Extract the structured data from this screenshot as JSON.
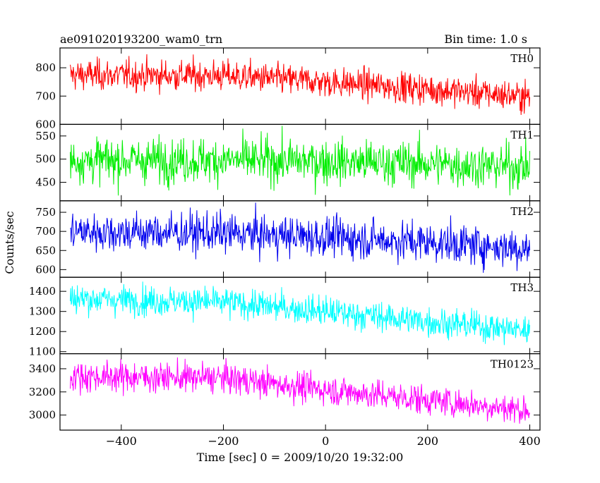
{
  "header": {
    "title": "ae091020193200_wam0_trn",
    "bin_time": "Bin time: 1.0 s"
  },
  "chart_data": {
    "type": "line",
    "xlabel": "Time [sec] 0 = 2009/10/20 19:32:00",
    "ylabel": "Counts/sec",
    "xlim": [
      -520,
      420
    ],
    "x_ticks": [
      -400,
      -200,
      0,
      200,
      400
    ],
    "x_tick_labels": [
      "−400",
      "−200",
      "0",
      "200",
      "400"
    ],
    "x_range": [
      -500,
      400
    ],
    "bin_time_s": 1.0,
    "grid": false,
    "panels": [
      {
        "name": "TH0",
        "color": "#ff0000",
        "ylim": [
          600,
          870
        ],
        "y_ticks": [
          600,
          700,
          800
        ],
        "y_tick_labels": [
          "600",
          "700",
          "800"
        ],
        "trend": [
          [
            -500,
            775
          ],
          [
            -200,
            772
          ],
          [
            0,
            750
          ],
          [
            200,
            725
          ],
          [
            400,
            697
          ]
        ],
        "noise_sd": 27
      },
      {
        "name": "TH1",
        "color": "#00ee00",
        "ylim": [
          410,
          575
        ],
        "y_ticks": [
          450,
          500,
          550
        ],
        "y_tick_labels": [
          "450",
          "500",
          "550"
        ],
        "trend": [
          [
            -500,
            497
          ],
          [
            -200,
            498
          ],
          [
            0,
            495
          ],
          [
            200,
            490
          ],
          [
            400,
            483
          ]
        ],
        "noise_sd": 24
      },
      {
        "name": "TH2",
        "color": "#0000ee",
        "ylim": [
          580,
          780
        ],
        "y_ticks": [
          600,
          650,
          700,
          750
        ],
        "y_tick_labels": [
          "600",
          "650",
          "700",
          "750"
        ],
        "trend": [
          [
            -500,
            700
          ],
          [
            -200,
            695
          ],
          [
            0,
            685
          ],
          [
            200,
            672
          ],
          [
            400,
            655
          ]
        ],
        "noise_sd": 26
      },
      {
        "name": "TH3",
        "color": "#00ffff",
        "ylim": [
          1090,
          1470
        ],
        "y_ticks": [
          1100,
          1200,
          1300,
          1400
        ],
        "y_tick_labels": [
          "1100",
          "1200",
          "1300",
          "1400"
        ],
        "trend": [
          [
            -500,
            1365
          ],
          [
            -200,
            1345
          ],
          [
            0,
            1300
          ],
          [
            200,
            1250
          ],
          [
            400,
            1205
          ]
        ],
        "noise_sd": 37
      },
      {
        "name": "TH0123",
        "color": "#ff00ff",
        "ylim": [
          2870,
          3530
        ],
        "y_ticks": [
          3000,
          3200,
          3400
        ],
        "y_tick_labels": [
          "3000",
          "3200",
          "3400"
        ],
        "trend": [
          [
            -500,
            3335
          ],
          [
            -200,
            3320
          ],
          [
            0,
            3220
          ],
          [
            200,
            3130
          ],
          [
            400,
            3040
          ]
        ],
        "noise_sd": 65
      }
    ]
  }
}
